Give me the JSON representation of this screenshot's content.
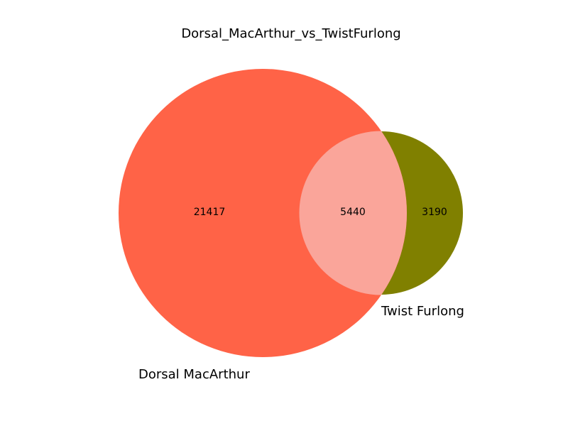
{
  "chart_data": {
    "type": "venn",
    "title": "Dorsal_MacArthur_vs_TwistFurlong",
    "sets": [
      {
        "name": "Dorsal MacArthur",
        "only_count": 21417,
        "color": "#ff6347"
      },
      {
        "name": "Twist Furlong",
        "only_count": 3190,
        "color": "#808000"
      }
    ],
    "overlap_count": 5440,
    "overlap_color": "#faa59a"
  }
}
